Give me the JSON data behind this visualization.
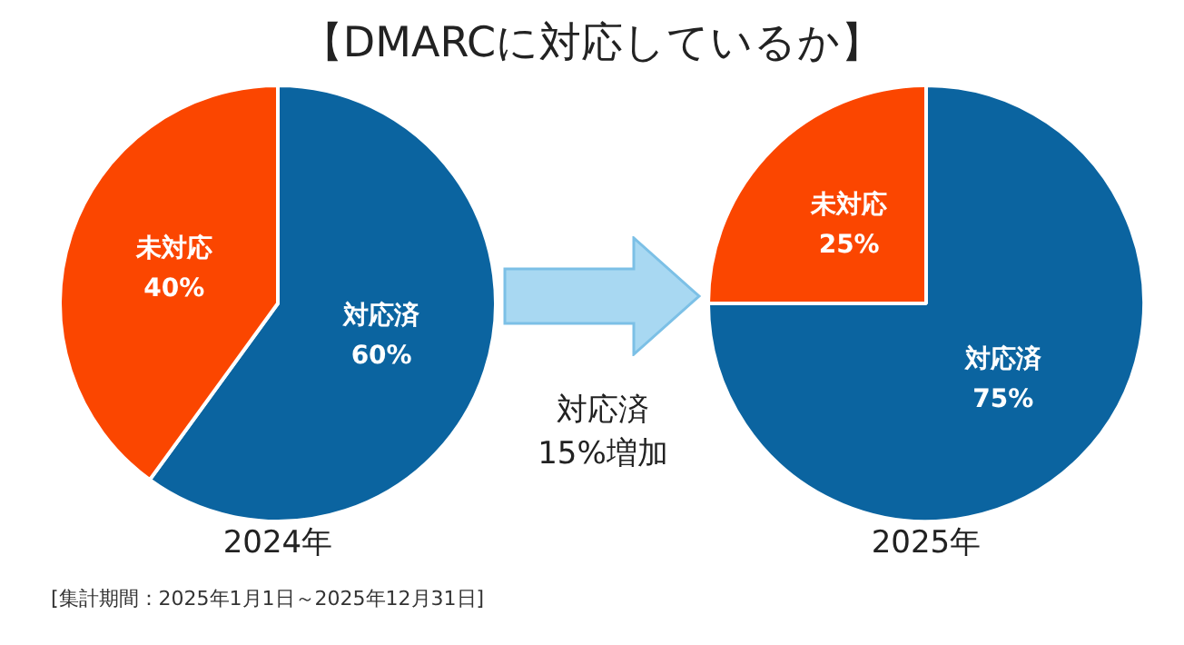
{
  "chart_data": [
    {
      "type": "pie",
      "title": "【DMARCに対応しているか】",
      "xlabel": "2024年",
      "categories": [
        "対応済",
        "未対応"
      ],
      "values": [
        60,
        40
      ],
      "value_labels": [
        "60%",
        "40%"
      ],
      "colors": [
        "#0b64a0",
        "#fb4600"
      ],
      "annotations": [
        "[集計期間：2025年1月1日～2025年12月31日]"
      ]
    },
    {
      "type": "pie",
      "xlabel": "2025年",
      "categories": [
        "対応済",
        "未対応"
      ],
      "values": [
        75,
        25
      ],
      "value_labels": [
        "75%",
        "25%"
      ],
      "colors": [
        "#0b64a0",
        "#fb4600"
      ],
      "annotations": [
        "対応済",
        "15%増加"
      ]
    }
  ]
}
